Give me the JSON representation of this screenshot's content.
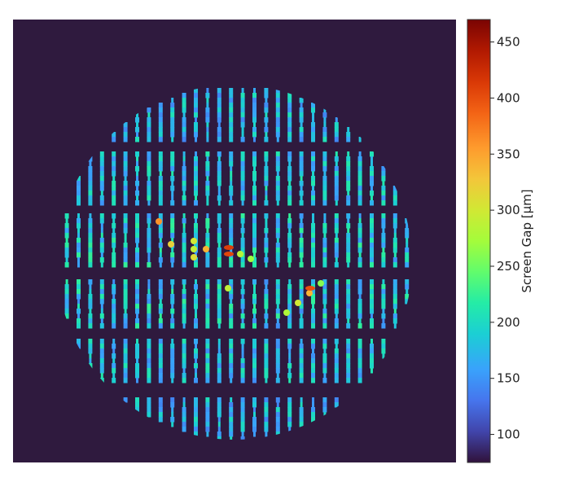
{
  "chart_data": {
    "type": "heatmap",
    "title": "",
    "xlabel": "",
    "ylabel": "",
    "colorbar": {
      "label": "Screen Gap [μm]",
      "min": 75,
      "max": 470,
      "ticks": [
        100,
        150,
        200,
        250,
        300,
        350,
        400,
        450
      ],
      "tick_labels": [
        "100",
        "150",
        "200",
        "250",
        "300",
        "350",
        "400",
        "450"
      ],
      "colormap": "turbo"
    },
    "background_color": "#2f1a3e",
    "typical_gap_range": [
      140,
      230
    ],
    "bands": [
      {
        "row": 1,
        "gap_min": 140,
        "gap_max": 210
      },
      {
        "row": 2,
        "gap_min": 150,
        "gap_max": 215
      },
      {
        "row": 3,
        "gap_min": 150,
        "gap_max": 225
      },
      {
        "row": 4,
        "gap_min": 145,
        "gap_max": 225
      },
      {
        "row": 5,
        "gap_min": 145,
        "gap_max": 215
      },
      {
        "row": 6,
        "gap_min": 140,
        "gap_max": 205
      }
    ],
    "hotspots": [
      {
        "row": 3,
        "gap": 300
      },
      {
        "row": 3,
        "gap": 290
      },
      {
        "row": 3,
        "gap": 310
      },
      {
        "row": 3,
        "gap": 340
      },
      {
        "row": 3,
        "gap": 410
      },
      {
        "row": 3,
        "gap": 405
      },
      {
        "row": 3,
        "gap": 285
      },
      {
        "row": 3,
        "gap": 270
      },
      {
        "row": 3,
        "gap": 360
      },
      {
        "row": 3,
        "gap": 320
      },
      {
        "row": 4,
        "gap": 280
      },
      {
        "row": 4,
        "gap": 300
      },
      {
        "row": 4,
        "gap": 340
      },
      {
        "row": 4,
        "gap": 400
      },
      {
        "row": 4,
        "gap": 290
      },
      {
        "row": 4,
        "gap": 260
      }
    ]
  }
}
